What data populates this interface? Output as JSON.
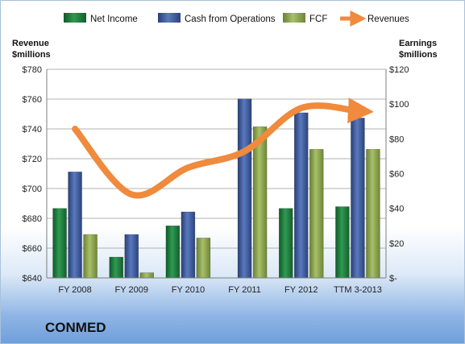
{
  "company": "CONMED",
  "chart_data": {
    "type": "bar",
    "categories": [
      "FY 2008",
      "FY 2009",
      "FY 2010",
      "FY 2011",
      "FY 2012",
      "TTM 3-2013"
    ],
    "left_axis": {
      "label_line1": "Revenue",
      "label_line2": "$millions",
      "range": [
        640,
        780
      ],
      "step": 20,
      "tick_labels": [
        "$640",
        "$660",
        "$680",
        "$700",
        "$720",
        "$740",
        "$760",
        "$780"
      ]
    },
    "right_axis": {
      "label_line1": "Earnings",
      "label_line2": "$millions",
      "range": [
        0,
        120
      ],
      "step": 20,
      "tick_labels": [
        "$-",
        "$20",
        "$40",
        "$60",
        "$80",
        "$100",
        "$120"
      ]
    },
    "series": [
      {
        "name": "Net Income",
        "axis": "right",
        "color": "#1f7a3c",
        "values": [
          40,
          12,
          30,
          0,
          40,
          41
        ]
      },
      {
        "name": "Cash from Operations",
        "axis": "right",
        "color": "#3d5a99",
        "values": [
          61,
          25,
          38,
          103,
          95,
          92
        ]
      },
      {
        "name": "FCF",
        "axis": "right",
        "color": "#8fa84e",
        "values": [
          25,
          3,
          23,
          87,
          74,
          74
        ]
      },
      {
        "name": "Revenues",
        "axis": "left",
        "type": "line",
        "color": "#f08a3c",
        "values": [
          740,
          696,
          714,
          725,
          754,
          752
        ]
      }
    ],
    "grid": true,
    "legend_position": "top"
  }
}
